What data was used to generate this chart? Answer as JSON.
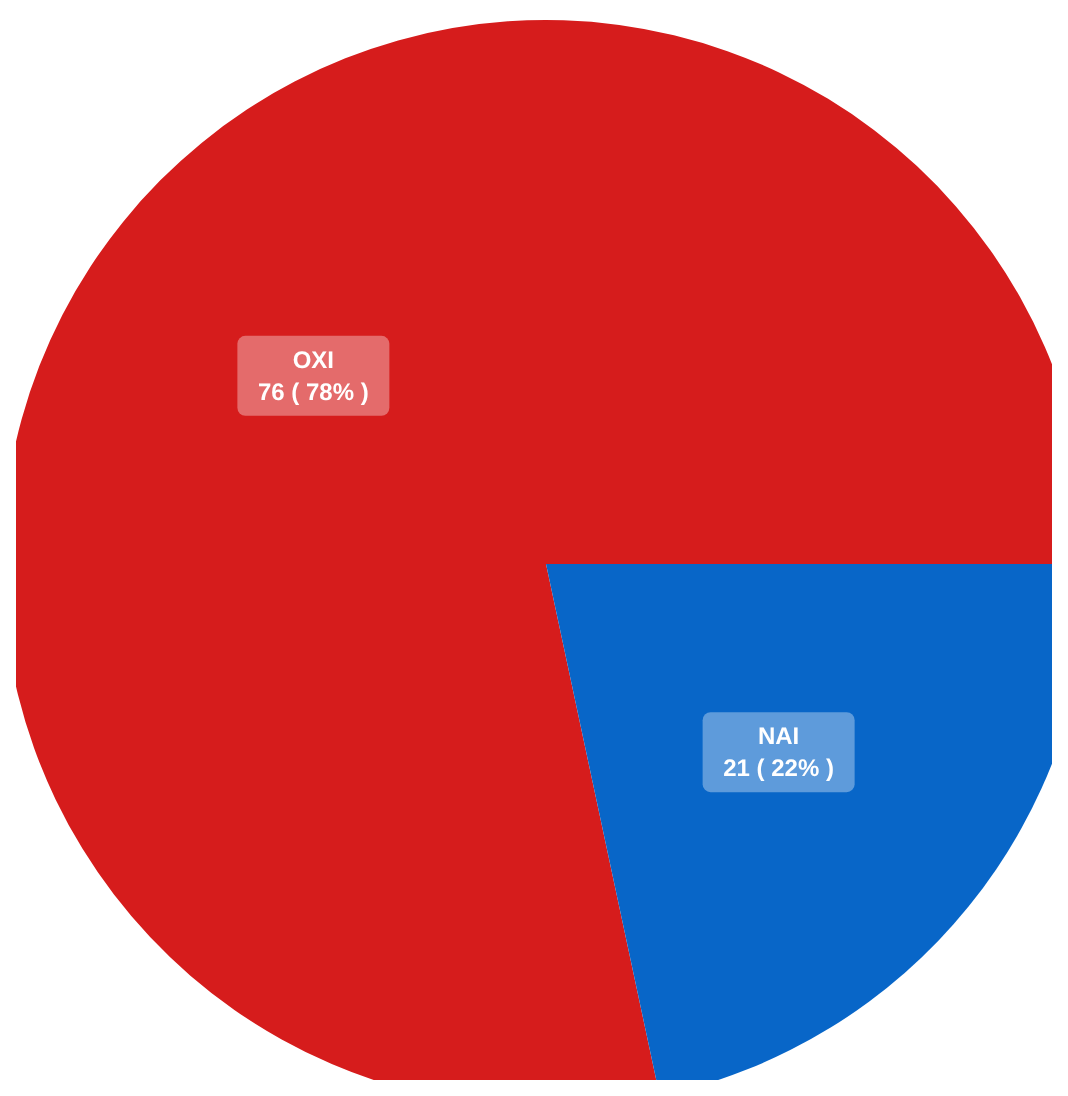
{
  "chart_data": {
    "type": "pie",
    "categories": [
      "OXI",
      "NAI"
    ],
    "values": [
      76,
      21
    ],
    "value_labels": [
      "76 ( 78% )",
      "21 ( 22% )"
    ],
    "colors": [
      "#d61c1c",
      "#0866c8"
    ]
  }
}
